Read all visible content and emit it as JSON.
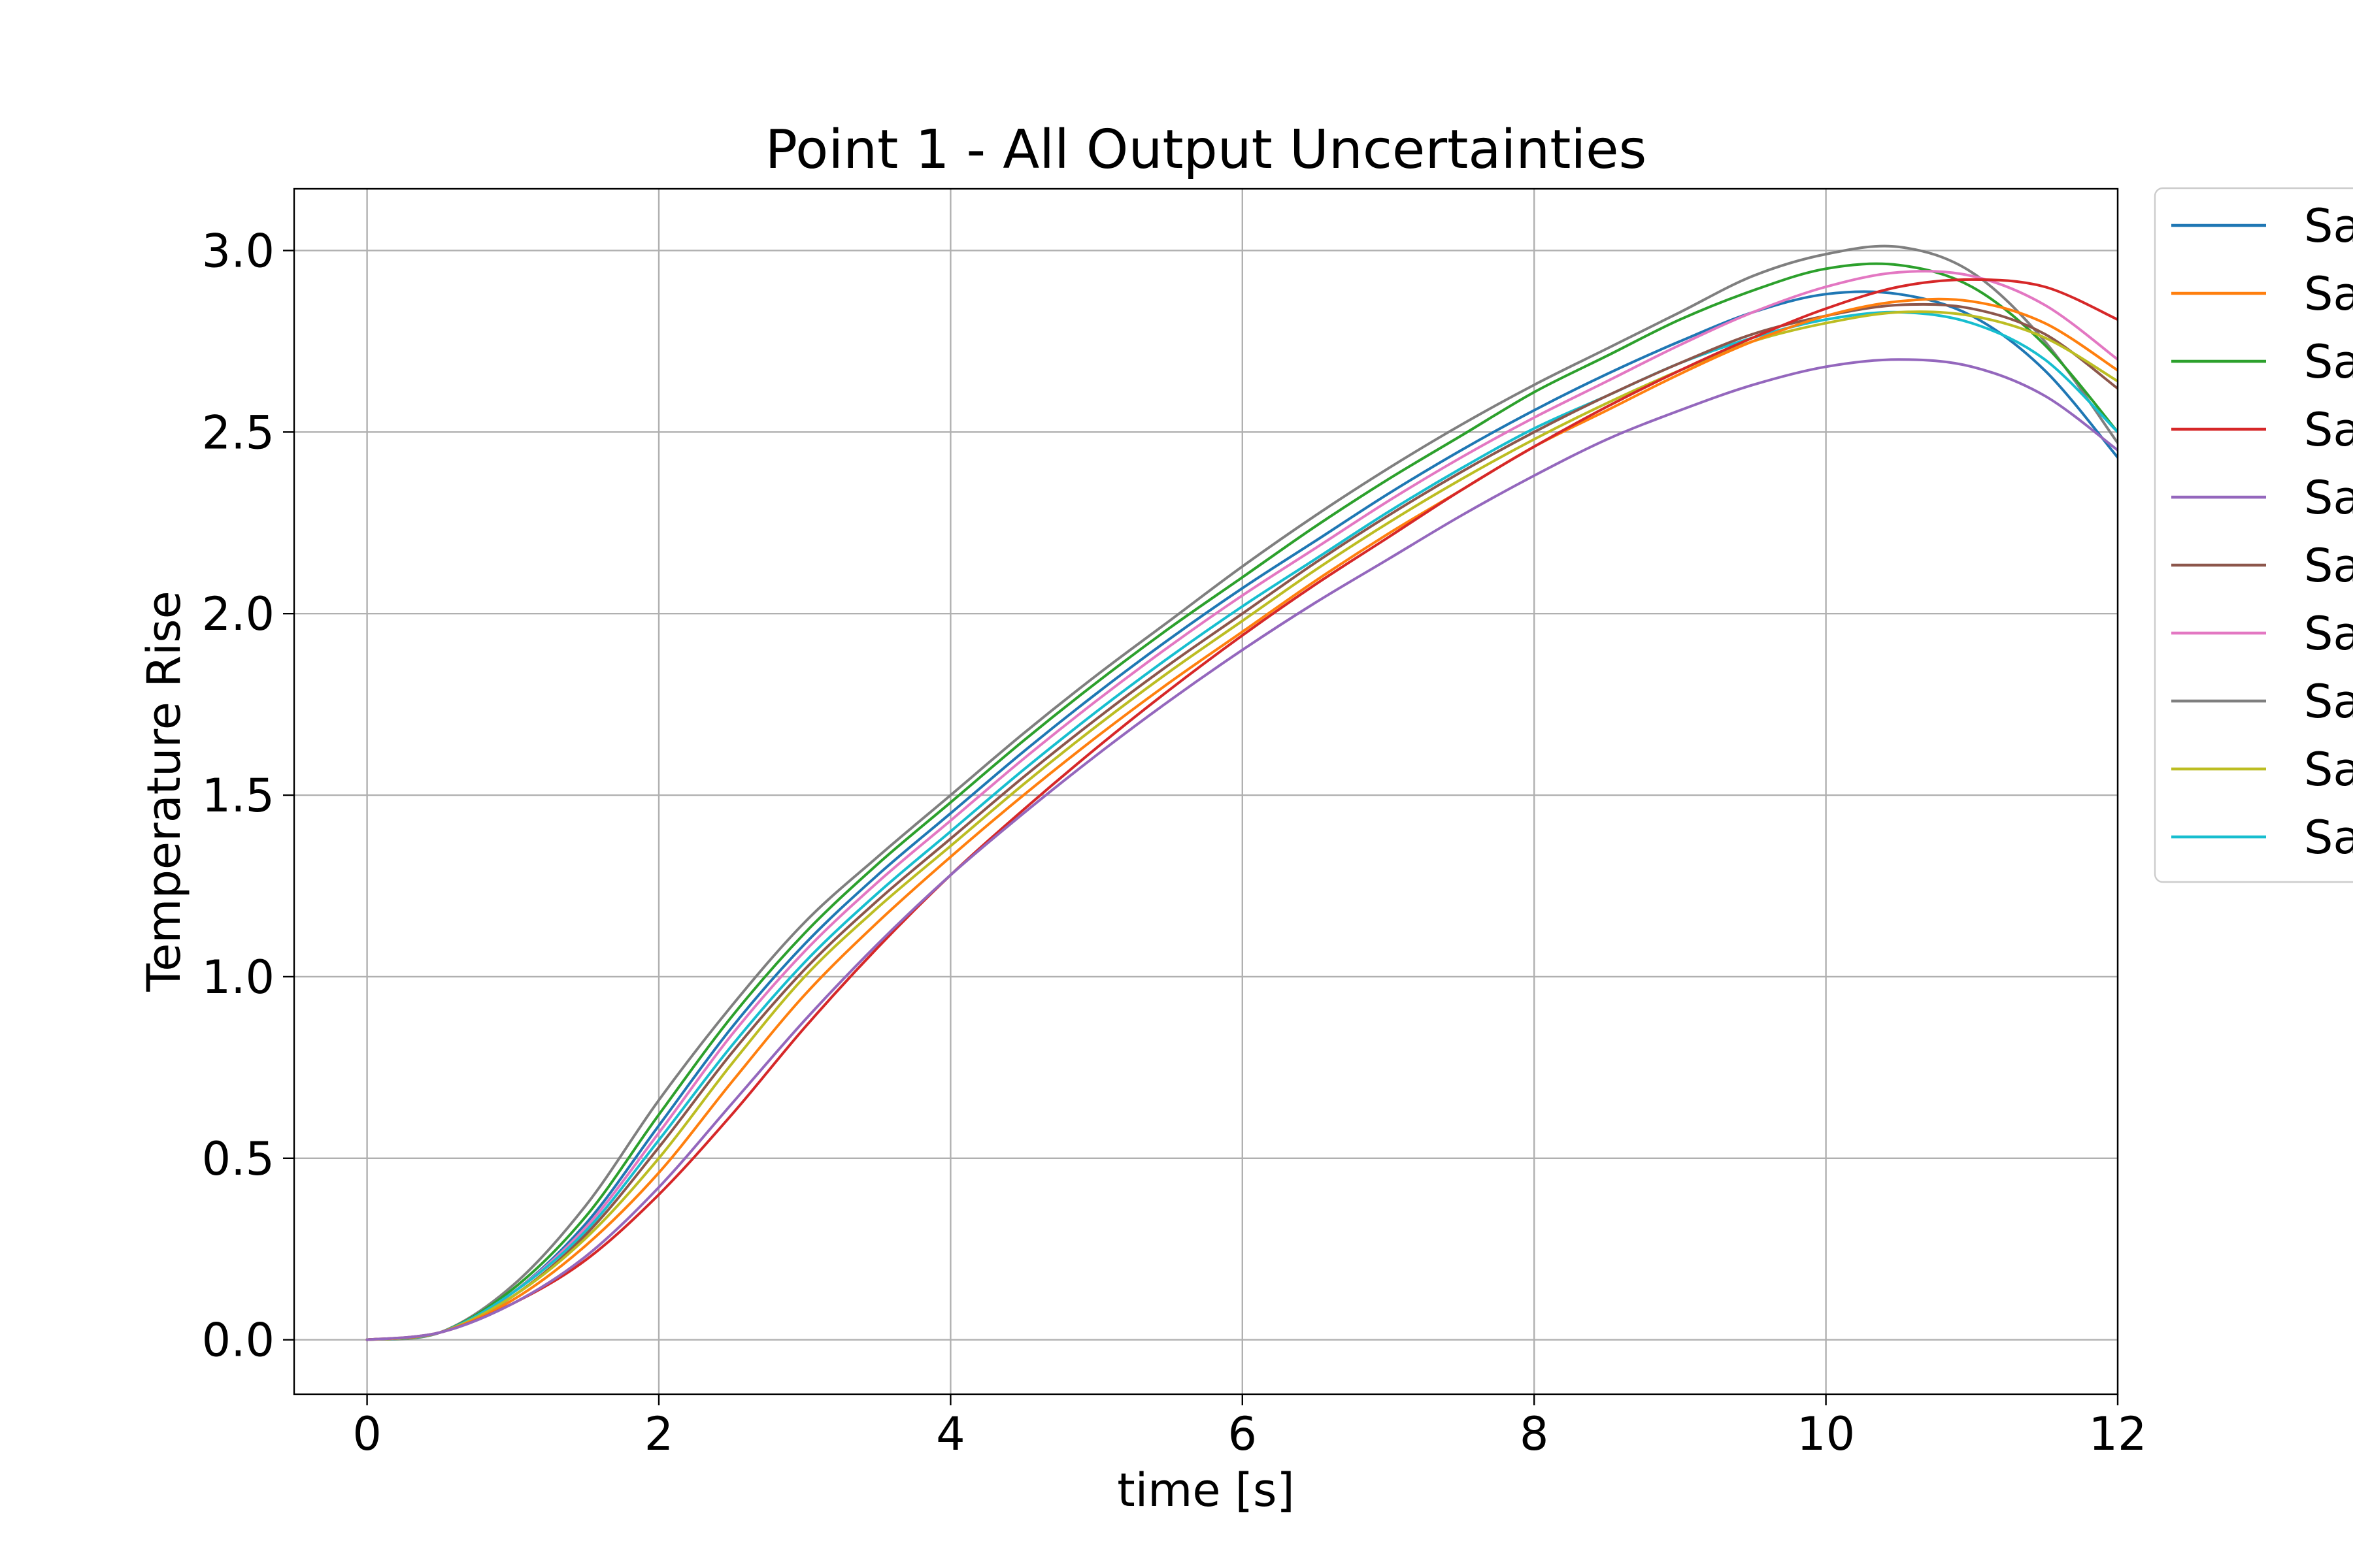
{
  "chart_data": {
    "type": "line",
    "title": "Point 1 - All Output Uncertainties",
    "xlabel": "time [s]",
    "ylabel": "Temperature Rise",
    "xlim": [
      -0.5,
      12
    ],
    "ylim": [
      -0.15,
      3.17
    ],
    "xticks": [
      0,
      2,
      4,
      6,
      8,
      10,
      12
    ],
    "yticks": [
      0.0,
      0.5,
      1.0,
      1.5,
      2.0,
      2.5,
      3.0
    ],
    "xtick_labels": [
      "0",
      "2",
      "4",
      "6",
      "8",
      "10",
      "12"
    ],
    "ytick_labels": [
      "0.0",
      "0.5",
      "1.0",
      "1.5",
      "2.0",
      "2.5",
      "3.0"
    ],
    "grid": true,
    "legend_position": "outside right, clipped",
    "legend_labels": [
      "Sa",
      "Sa",
      "Sa",
      "Sa",
      "Sa",
      "Sa",
      "Sa",
      "Sa",
      "Sa",
      "Sa"
    ],
    "colors": [
      "#1f77b4",
      "#ff7f0e",
      "#2ca02c",
      "#d62728",
      "#9467bd",
      "#8c564b",
      "#e377c2",
      "#7f7f7f",
      "#bcbd22",
      "#17becf"
    ],
    "x": [
      0,
      0.5,
      1,
      1.5,
      2,
      2.5,
      3,
      3.5,
      4,
      4.5,
      5,
      5.5,
      6,
      6.5,
      7,
      7.5,
      8,
      8.5,
      9,
      9.5,
      10,
      10.5,
      11,
      11.5,
      12
    ],
    "series": [
      {
        "color": "#7f7f7f",
        "values": [
          0.0,
          0.02,
          0.15,
          0.37,
          0.66,
          0.92,
          1.15,
          1.33,
          1.5,
          1.67,
          1.83,
          1.98,
          2.13,
          2.27,
          2.4,
          2.52,
          2.63,
          2.73,
          2.83,
          2.93,
          2.99,
          3.01,
          2.94,
          2.75,
          2.47
        ]
      },
      {
        "color": "#2ca02c",
        "values": [
          0.0,
          0.02,
          0.14,
          0.34,
          0.62,
          0.89,
          1.12,
          1.31,
          1.48,
          1.65,
          1.81,
          1.96,
          2.1,
          2.24,
          2.37,
          2.49,
          2.61,
          2.71,
          2.81,
          2.89,
          2.95,
          2.96,
          2.9,
          2.74,
          2.5
        ]
      },
      {
        "color": "#1f77b4",
        "values": [
          0.0,
          0.02,
          0.13,
          0.32,
          0.59,
          0.86,
          1.09,
          1.28,
          1.45,
          1.62,
          1.78,
          1.93,
          2.07,
          2.2,
          2.33,
          2.45,
          2.56,
          2.66,
          2.75,
          2.83,
          2.88,
          2.88,
          2.82,
          2.67,
          2.43
        ]
      },
      {
        "color": "#e377c2",
        "values": [
          0.0,
          0.02,
          0.13,
          0.31,
          0.57,
          0.84,
          1.07,
          1.26,
          1.43,
          1.6,
          1.76,
          1.91,
          2.05,
          2.18,
          2.31,
          2.43,
          2.54,
          2.64,
          2.74,
          2.83,
          2.9,
          2.94,
          2.93,
          2.85,
          2.7
        ]
      },
      {
        "color": "#17becf",
        "values": [
          0.0,
          0.02,
          0.13,
          0.3,
          0.55,
          0.81,
          1.04,
          1.23,
          1.4,
          1.57,
          1.73,
          1.88,
          2.02,
          2.15,
          2.28,
          2.4,
          2.51,
          2.6,
          2.69,
          2.76,
          2.81,
          2.83,
          2.8,
          2.7,
          2.5
        ]
      },
      {
        "color": "#8c564b",
        "values": [
          0.0,
          0.02,
          0.12,
          0.29,
          0.53,
          0.79,
          1.02,
          1.21,
          1.38,
          1.55,
          1.71,
          1.86,
          2.0,
          2.14,
          2.27,
          2.39,
          2.5,
          2.6,
          2.69,
          2.77,
          2.82,
          2.85,
          2.84,
          2.77,
          2.62
        ]
      },
      {
        "color": "#bcbd22",
        "values": [
          0.0,
          0.02,
          0.12,
          0.28,
          0.5,
          0.76,
          1.0,
          1.19,
          1.36,
          1.53,
          1.69,
          1.84,
          1.98,
          2.12,
          2.25,
          2.37,
          2.48,
          2.58,
          2.67,
          2.75,
          2.8,
          2.83,
          2.82,
          2.76,
          2.64
        ]
      },
      {
        "color": "#ff7f0e",
        "values": [
          0.0,
          0.02,
          0.11,
          0.26,
          0.46,
          0.71,
          0.95,
          1.15,
          1.33,
          1.5,
          1.66,
          1.81,
          1.95,
          2.09,
          2.22,
          2.34,
          2.46,
          2.56,
          2.66,
          2.75,
          2.82,
          2.86,
          2.86,
          2.8,
          2.67
        ]
      },
      {
        "color": "#d62728",
        "values": [
          0.0,
          0.02,
          0.1,
          0.22,
          0.4,
          0.62,
          0.86,
          1.08,
          1.28,
          1.46,
          1.63,
          1.79,
          1.94,
          2.08,
          2.21,
          2.34,
          2.46,
          2.57,
          2.67,
          2.76,
          2.84,
          2.9,
          2.92,
          2.9,
          2.81
        ]
      },
      {
        "color": "#9467bd",
        "values": [
          0.0,
          0.02,
          0.1,
          0.23,
          0.42,
          0.65,
          0.88,
          1.09,
          1.28,
          1.45,
          1.61,
          1.76,
          1.9,
          2.03,
          2.15,
          2.27,
          2.38,
          2.48,
          2.56,
          2.63,
          2.68,
          2.7,
          2.68,
          2.6,
          2.45
        ]
      }
    ]
  }
}
